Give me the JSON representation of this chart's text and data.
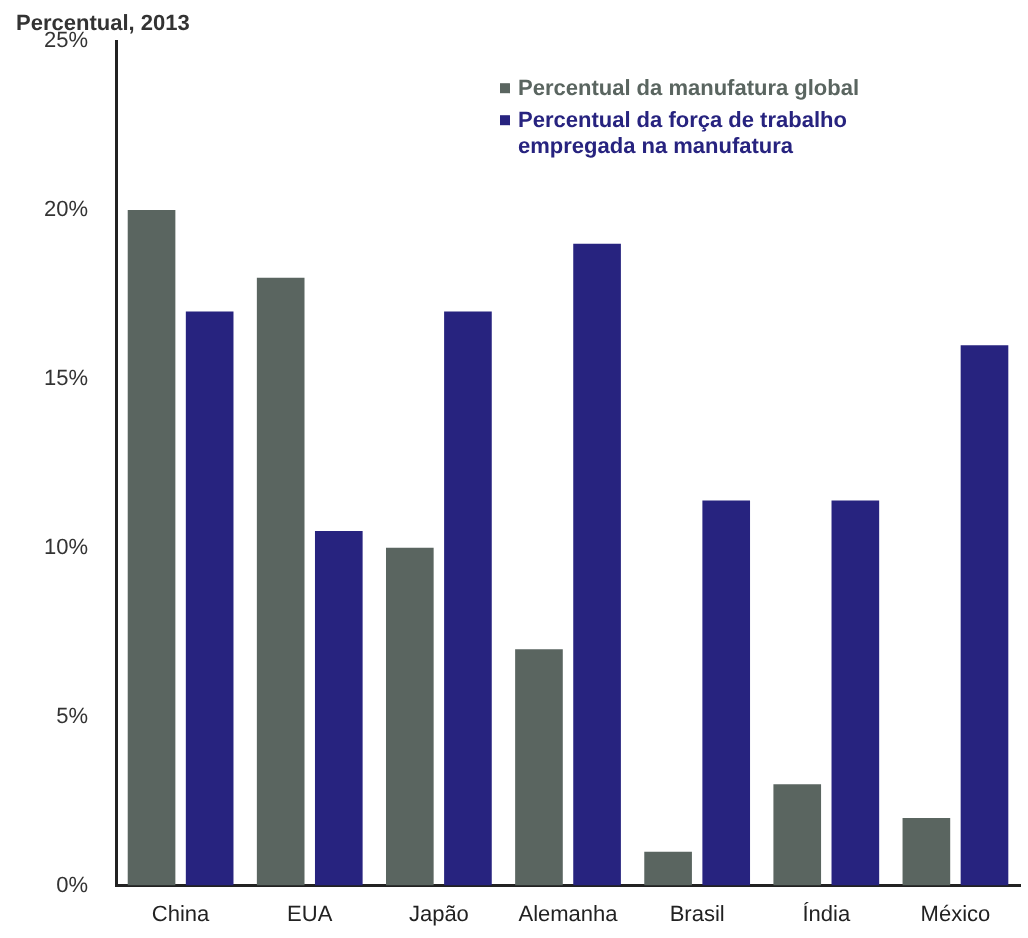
{
  "chart_data": {
    "type": "bar",
    "title": "Percentual, 2013",
    "categories": [
      "China",
      "EUA",
      "Japão",
      "Alemanha",
      "Brasil",
      "Índia",
      "México"
    ],
    "series": [
      {
        "name": "Percentual da manufatura global",
        "color": "#5a6560",
        "values": [
          20,
          18,
          10,
          7,
          1,
          3,
          2
        ]
      },
      {
        "name": "Percentual da força de trabalho empregada na manufatura",
        "color": "#27237f",
        "values": [
          17,
          10.5,
          17,
          19,
          11.4,
          11.4,
          16
        ]
      }
    ],
    "ylim": [
      0,
      25
    ],
    "yticks": [
      {
        "value": 0,
        "label": "0%"
      },
      {
        "value": 5,
        "label": "5%"
      },
      {
        "value": 10,
        "label": "10%"
      },
      {
        "value": 15,
        "label": "15%"
      },
      {
        "value": 20,
        "label": "20%"
      },
      {
        "value": 25,
        "label": "25%"
      }
    ],
    "grid": false,
    "legend": "top right"
  }
}
